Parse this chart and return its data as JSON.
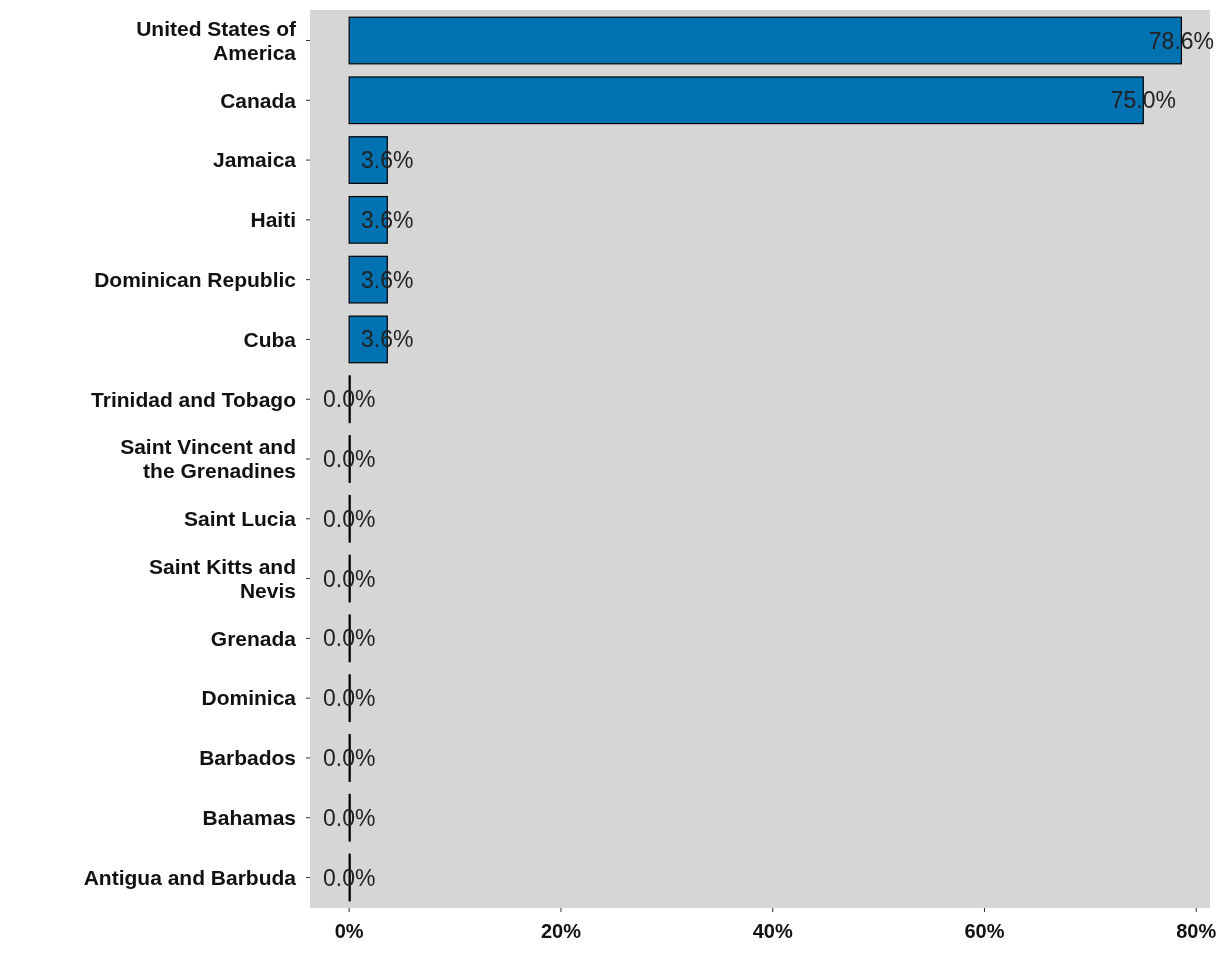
{
  "chart_data": {
    "type": "bar",
    "orientation": "horizontal",
    "categories": [
      "United States of America",
      "Canada",
      "Jamaica",
      "Haiti",
      "Dominican Republic",
      "Cuba",
      "Trinidad and Tobago",
      "Saint Vincent and the Grenadines",
      "Saint Lucia",
      "Saint Kitts and Nevis",
      "Grenada",
      "Dominica",
      "Barbados",
      "Bahamas",
      "Antigua and Barbuda"
    ],
    "values": [
      78.6,
      75.0,
      3.6,
      3.6,
      3.6,
      3.6,
      0.0,
      0.0,
      0.0,
      0.0,
      0.0,
      0.0,
      0.0,
      0.0,
      0.0
    ],
    "value_labels": [
      "78.6%",
      "75.0%",
      "3.6%",
      "3.6%",
      "3.6%",
      "3.6%",
      "0.0%",
      "0.0%",
      "0.0%",
      "0.0%",
      "0.0%",
      "0.0%",
      "0.0%",
      "0.0%",
      "0.0%"
    ],
    "color": "#0072b2",
    "xlim": [
      -3.7,
      81.3
    ],
    "xticks": [
      {
        "value": 0,
        "label": "0%"
      },
      {
        "value": 20,
        "label": "20%"
      },
      {
        "value": 40,
        "label": "40%"
      },
      {
        "value": 60,
        "label": "60%"
      },
      {
        "value": 80,
        "label": "80%"
      }
    ],
    "grid": false
  }
}
